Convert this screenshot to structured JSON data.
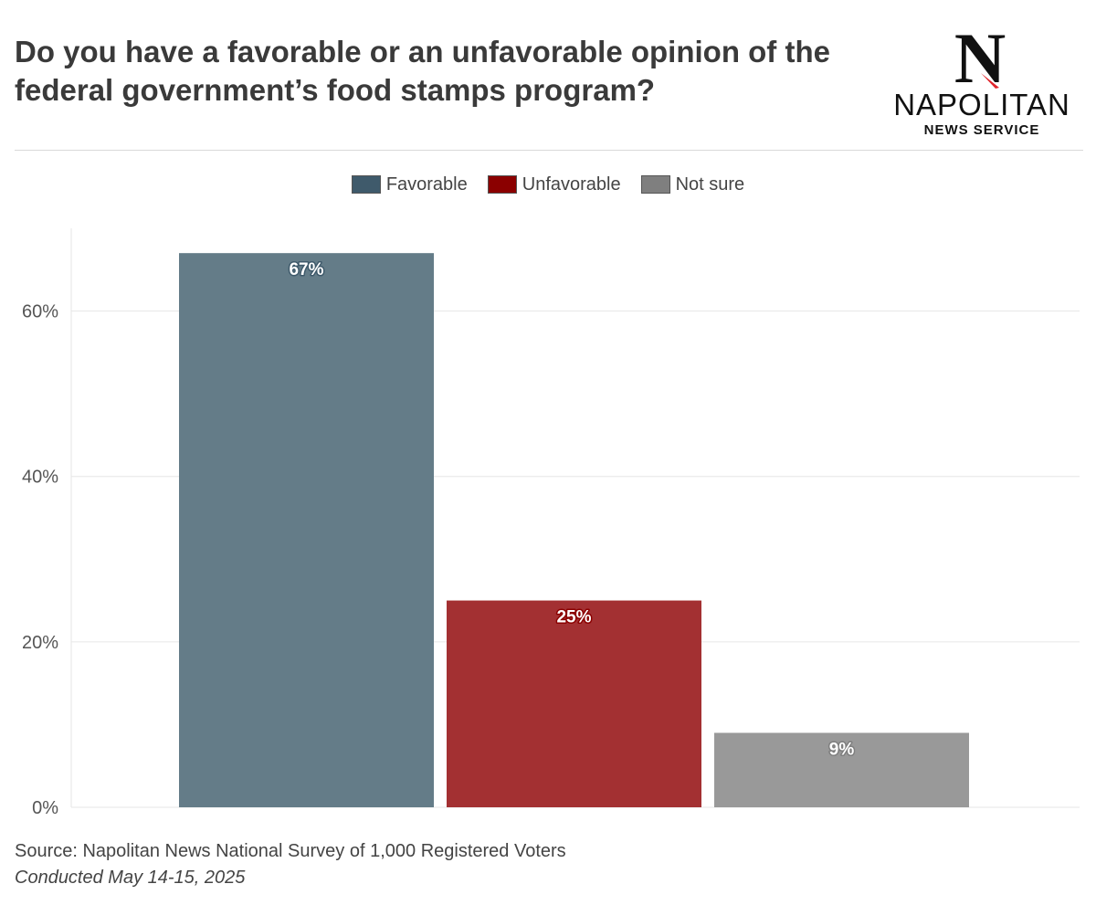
{
  "header": {
    "title": "Do you have a favorable or an unfavorable opinion of the federal government’s food stamps program?"
  },
  "logo": {
    "letter": "N",
    "name": "NAPOLITAN",
    "sub": "NEWS SERVICE"
  },
  "legend": [
    {
      "label": "Favorable",
      "color": "#3f5a6b"
    },
    {
      "label": "Unfavorable",
      "color": "#8b0000"
    },
    {
      "label": "Not sure",
      "color": "#7f7f7f"
    }
  ],
  "chart_data": {
    "type": "bar",
    "categories": [
      "Favorable",
      "Unfavorable",
      "Not sure"
    ],
    "values": [
      67,
      25,
      9
    ],
    "data_labels": [
      "67%",
      "25%",
      "9%"
    ],
    "bar_colors": [
      "#647c88",
      "#a33032",
      "#999999"
    ],
    "label_outline_colors": [
      "#3f5a6b",
      "#8b0000",
      "#7f7f7f"
    ],
    "yticks": [
      0,
      20,
      40,
      60
    ],
    "ytick_labels": [
      "0%",
      "20%",
      "40%",
      "60%"
    ],
    "ylim": [
      0,
      70
    ],
    "grid": true,
    "legend_position": "top"
  },
  "footer": {
    "source": "Source: Napolitan News National Survey of 1,000 Registered Voters",
    "date": "Conducted May 14-15, 2025"
  }
}
